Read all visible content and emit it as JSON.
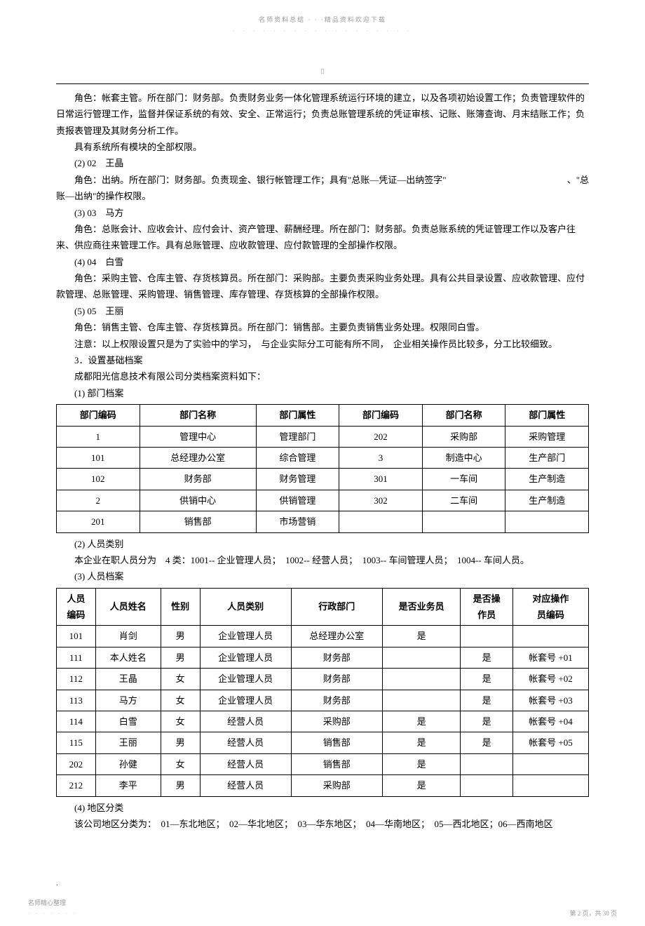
{
  "header": {
    "top_text": "名师资料总结 · · ·精品资料欢迎下载",
    "dots": "· · · · · · · · · · · · · · · · · ·",
    "small_mark": "▯"
  },
  "content": {
    "p1": "角色：帐套主管。所在部门：财务部。负责财务业务一体化管理系统运行环境的建立，以及各项初始设置工作；负责管理软件的日常运行管理工作，监督并保证系统的有效、安全、正常运行；负责总账管理系统的凭证审核、记账、账簿查询、月末结账工作；负责报表管理及其财务分析工作。",
    "p2": "具有系统所有模块的全部权限。",
    "h2": "(2) 02　王晶",
    "p3a": "角色：出纳。所在部门：财务部。负责现金、银行帐管理工作；具有\"总账—凭证—出纳签字\"",
    "p3b": "、\"总",
    "p3c": "账—出纳\"的操作权限。",
    "h3": "(3) 03　马方",
    "p4": "角色：总账会计、应收会计、应付会计、资产管理、薪酬经理。所在部门：财务部。负责总账系统的凭证管理工作以及客户往来、供应商往来管理工作。具有总账管理、应收款管理、应付款管理的全部操作权限。",
    "h4": "(4) 04　白雪",
    "p5": "角色：采购主管、仓库主管、存货核算员。所在部门：采购部。主要负责采购业务处理。具有公共目录设置、应收款管理、应付款管理、总账管理、采购管理、销售管理、库存管理、存货核算的全部操作权限。",
    "h5": "(5) 05　王丽",
    "p6": "角色：销售主管、仓库主管、存货核算员。所在部门：销售部。主要负责销售业务处理。权限同白雪。",
    "p7": "注意：以上权限设置只是为了实验中的学习，　与企业实际分工可能有所不同，　企业相关操作员比较多，分工比较细致。",
    "h_s3": "3．设置基础档案",
    "p8": "成都阳光信息技术有限公司分类档案资料如下：",
    "h_s31": "(1) 部门档案",
    "h_s32": "(2) 人员类别",
    "p9": "本企业在职人员分为　4 类：1001-- 企业管理人员；　1002-- 经营人员；　1003-- 车间管理人员；　1004-- 车间人员。",
    "h_s33": "(3) 人员档案",
    "h_s34": "(4) 地区分类",
    "p10": "该公司地区分类为：　01—东北地区；　02—华北地区；　03—华东地区；　04—华南地区；　05—西北地区；06—西南地区"
  },
  "dept_table": {
    "headers": [
      "部门编码",
      "部门名称",
      "部门属性",
      "部门编码",
      "部门名称",
      "部门属性"
    ],
    "rows": [
      [
        "1",
        "管理中心",
        "管理部门",
        "202",
        "采购部",
        "采购管理"
      ],
      [
        "101",
        "总经理办公室",
        "综合管理",
        "3",
        "制造中心",
        "生产部门"
      ],
      [
        "102",
        "财务部",
        "财务管理",
        "301",
        "一车间",
        "生产制造"
      ],
      [
        "2",
        "供销中心",
        "供销管理",
        "302",
        "二车间",
        "生产制造"
      ],
      [
        "201",
        "销售部",
        "市场营销",
        "",
        "",
        ""
      ]
    ]
  },
  "person_table": {
    "headers": {
      "c1a": "人员",
      "c1b": "编码",
      "c2": "人员姓名",
      "c3": "性别",
      "c4": "人员类别",
      "c5": "行政部门",
      "c6": "是否业务员",
      "c7a": "是否操",
      "c7b": "作员",
      "c8a": "对应操作",
      "c8b": "员编码"
    },
    "rows": [
      [
        "101",
        "肖剑",
        "男",
        "企业管理人员",
        "总经理办公室",
        "是",
        "",
        ""
      ],
      [
        "111",
        "本人姓名",
        "男",
        "企业管理人员",
        "财务部",
        "",
        "是",
        "帐套号 +01"
      ],
      [
        "112",
        "王晶",
        "女",
        "企业管理人员",
        "财务部",
        "",
        "是",
        "帐套号 +02"
      ],
      [
        "113",
        "马方",
        "女",
        "企业管理人员",
        "财务部",
        "",
        "是",
        "帐套号 +03"
      ],
      [
        "114",
        "白雪",
        "女",
        "经营人员",
        "采购部",
        "是",
        "是",
        "帐套号 +04"
      ],
      [
        "115",
        "王丽",
        "男",
        "经营人员",
        "销售部",
        "是",
        "是",
        "帐套号 +05"
      ],
      [
        "202",
        "孙健",
        "女",
        "经营人员",
        "销售部",
        "是",
        "",
        ""
      ],
      [
        "212",
        "李平",
        "男",
        "经营人员",
        "采购部",
        "是",
        "",
        ""
      ]
    ]
  },
  "footer": {
    "left": "名师精心整理",
    "left_dots": "· · · · · · ·",
    "right": "第 2 页，共 30 页",
    "corner": "."
  }
}
